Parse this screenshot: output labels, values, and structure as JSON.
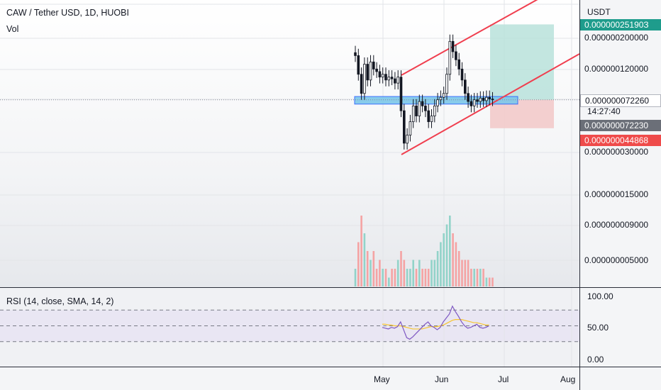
{
  "header": {
    "symbol_line": "CAW / Tether USD, 1D, HUOBI",
    "volume_label": "Vol"
  },
  "price_axis": {
    "currency": "USDT",
    "levels": [
      "0.000000200000",
      "0.000000120000",
      "0.000000030000",
      "0.000000015000",
      "0.000000009000",
      "0.000000005000"
    ],
    "target_tag": "0.00000025190З",
    "current_price": "0.000000072260",
    "countdown": "14:27:40",
    "cursor_price": "0.000000072230",
    "stop_tag": "0.000000044868",
    "colors": {
      "target": "#1e9c8c",
      "stop": "#ef4b4b",
      "cursor": "#6b6f78"
    }
  },
  "rsi": {
    "label": "RSI (14, close, SMA, 14, 2)",
    "levels": [
      "100.00",
      "50.00",
      "0.00"
    ]
  },
  "time_axis": {
    "labels": [
      "May",
      "Jun",
      "Jul",
      "Aug"
    ]
  },
  "chart_data": {
    "type": "candlestick",
    "title": "CAW / Tether USD, 1D, HUOBI",
    "y_scale": "log",
    "y_unit": "USDT",
    "x_labels": [
      "May",
      "Jun",
      "Jul",
      "Aug"
    ],
    "close_series": [
      1.5e-07,
      1.1e-07,
      8e-08,
      1.3e-07,
      1e-07,
      1.35e-07,
      1.2e-07,
      1.15e-07,
      1.05e-07,
      1.1e-07,
      1e-07,
      1.05e-07,
      1.02e-07,
      9.5e-08,
      1.05e-07,
      6e-08,
      3.5e-08,
      4e-08,
      5e-08,
      6.5e-08,
      5.5e-08,
      7e-08,
      6.5e-08,
      6e-08,
      5e-08,
      5.5e-08,
      6.5e-08,
      7.2e-08,
      7.5e-08,
      8e-08,
      1.1e-07,
      1.9e-07,
      1.6e-07,
      1.4e-07,
      1.2e-07,
      1e-07,
      8e-08,
      7e-08,
      6.5e-08,
      7.2e-08,
      7e-08,
      7.4e-08,
      7.1e-08,
      7.5e-08,
      7.3e-08,
      7.2e-08
    ],
    "volume_series": [
      2,
      5,
      8,
      6,
      4,
      3,
      4,
      2,
      3,
      2,
      2,
      1,
      2,
      2,
      3,
      4,
      3,
      2,
      2,
      3,
      2,
      3,
      2,
      2,
      2,
      3,
      3,
      4,
      5,
      6,
      7,
      8,
      6,
      5,
      4,
      3,
      3,
      3,
      2,
      2,
      2,
      2,
      2,
      1,
      1,
      1
    ],
    "rsi_series": [
      48,
      47,
      46,
      48,
      47,
      49,
      55,
      45,
      35,
      33,
      36,
      40,
      44,
      48,
      52,
      55,
      50,
      48,
      45,
      48,
      55,
      60,
      65,
      75,
      68,
      62,
      55,
      50,
      47,
      48,
      50,
      52,
      48,
      47,
      48,
      50
    ],
    "rsi_ma_series": [
      52,
      52,
      51,
      51,
      50,
      50,
      50,
      49,
      48,
      47,
      46,
      46,
      46,
      46,
      47,
      48,
      49,
      49,
      49,
      50,
      51,
      53,
      55,
      57,
      58,
      58,
      58,
      57,
      56,
      55,
      54,
      54,
      53,
      52,
      51,
      51
    ],
    "rsi_levels": [
      70,
      50,
      30
    ],
    "annotations": {
      "support_zone": [
        6.7e-08,
        7.6e-08
      ],
      "channel": "ascending parallel channel",
      "target": 2.519e-07,
      "stop": 4.4868e-08
    }
  }
}
